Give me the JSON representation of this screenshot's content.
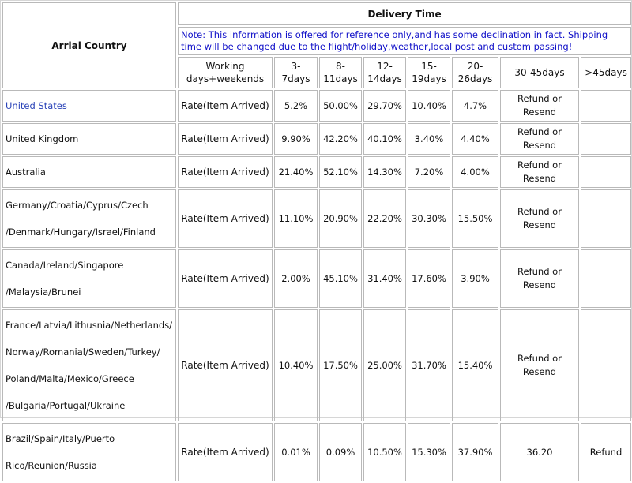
{
  "header": {
    "country_label": "Arrial Country",
    "delivery_label": "Delivery Time",
    "note": "Note: This information is offered for reference only,and has some declination in fact. Shipping time will be changed due to the flight/holiday,weather,local post and custom passing!"
  },
  "columns": [
    [
      "Working",
      "days+weekends"
    ],
    [
      "3-7days"
    ],
    [
      "8-",
      "11days"
    ],
    [
      "12-",
      "14days"
    ],
    [
      "15-",
      "19days"
    ],
    [
      "20-",
      "26days"
    ],
    [
      "30-45days"
    ],
    [
      ">45days"
    ]
  ],
  "rows": [
    {
      "country": [
        "United States"
      ],
      "link": true,
      "rate_label": "Rate(Item Arrived)",
      "values": [
        "5.2%",
        "50.00%",
        "29.70%",
        "10.40%",
        "4.7%"
      ],
      "col30_45": [
        "Refund or",
        "Resend"
      ],
      "over45": ""
    },
    {
      "country": [
        "United Kingdom"
      ],
      "link": false,
      "rate_label": "Rate(Item Arrived)",
      "values": [
        "9.90%",
        "42.20%",
        "40.10%",
        "3.40%",
        "4.40%"
      ],
      "col30_45": [
        "Refund or",
        "Resend"
      ],
      "over45": ""
    },
    {
      "country": [
        "Australia"
      ],
      "link": false,
      "rate_label": "Rate(Item Arrived)",
      "values": [
        "21.40%",
        "52.10%",
        "14.30%",
        "7.20%",
        "4.00%"
      ],
      "col30_45": [
        "Refund or",
        "Resend"
      ],
      "over45": ""
    },
    {
      "country": [
        "Germany/Croatia/Cyprus/Czech",
        "/Denmark/Hungary/Israel/Finland"
      ],
      "link": false,
      "rate_label": "Rate(Item Arrived)",
      "values": [
        "11.10%",
        "20.90%",
        "22.20%",
        "30.30%",
        "15.50%"
      ],
      "col30_45": [
        "Refund or",
        "Resend"
      ],
      "over45": ""
    },
    {
      "country": [
        "Canada/Ireland/Singapore",
        "/Malaysia/Brunei"
      ],
      "link": false,
      "rate_label": "Rate(Item Arrived)",
      "values": [
        "2.00%",
        "45.10%",
        "31.40%",
        "17.60%",
        "3.90%"
      ],
      "col30_45": [
        "Refund or",
        "Resend"
      ],
      "over45": ""
    },
    {
      "country": [
        "France/Latvia/Lithusnia/Netherlands/",
        "Norway/Romanial/Sweden/Turkey/",
        "Poland/Malta/Mexico/Greece",
        "/Bulgaria/Portugal/Ukraine"
      ],
      "link": false,
      "rate_label": "Rate(Item Arrived)",
      "values": [
        "10.40%",
        "17.50%",
        "25.00%",
        "31.70%",
        "15.40%"
      ],
      "col30_45": [
        "Refund or",
        "Resend"
      ],
      "over45": ""
    },
    {
      "country": [
        "Brazil/Spain/Italy/Puerto",
        "Rico/Reunion/Russia"
      ],
      "link": false,
      "rate_label": "Rate(Item Arrived)",
      "values": [
        "0.01%",
        "0.09%",
        "10.50%",
        "15.30%",
        "37.90%"
      ],
      "col30_45": [
        "36.20"
      ],
      "over45": "Refund"
    }
  ]
}
